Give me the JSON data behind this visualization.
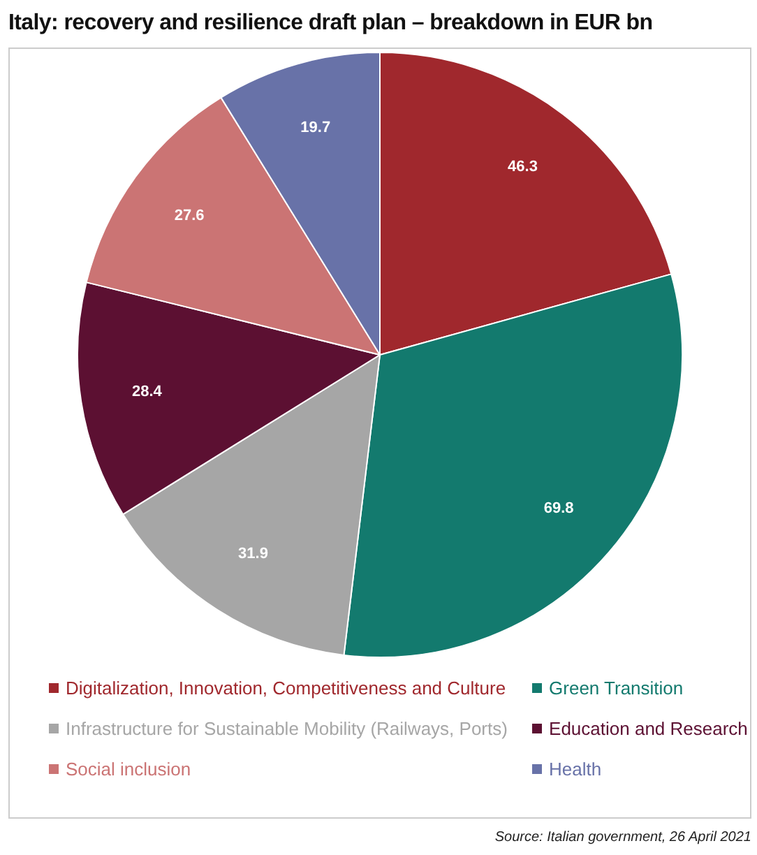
{
  "chart_data": {
    "type": "pie",
    "title": "Italy: recovery and resilience draft plan – breakdown in EUR bn",
    "categories": [
      "Digitalization, Innovation, Competitiveness and Culture",
      "Green Transition",
      "Infrastructure for Sustainable Mobility (Railways, Ports)",
      "Education and Research",
      "Social inclusion",
      "Health"
    ],
    "values": [
      46.3,
      69.8,
      31.9,
      28.4,
      27.6,
      19.7
    ],
    "colors": [
      "#a0282d",
      "#137a6e",
      "#a6a6a6",
      "#5c1032",
      "#cb7474",
      "#6872a8"
    ],
    "data_labels": true,
    "legend": "bottom",
    "annotations": [
      "Source: Italian government, 26 April 2021"
    ]
  }
}
